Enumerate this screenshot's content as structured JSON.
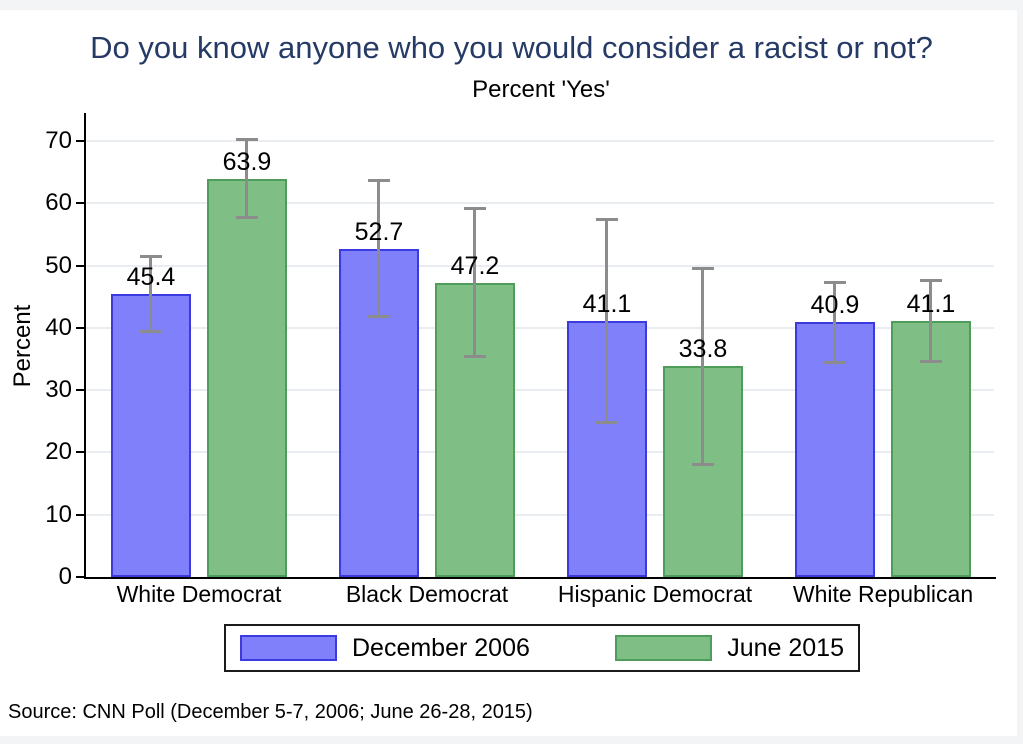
{
  "page": {
    "source": "Source: CNN Poll (December 5-7, 2006; June 26-28, 2015)",
    "colors": {
      "title_text": "#253a66",
      "bar_2006_fill": "#7f80fa",
      "bar_2006_border": "#3a3ae0",
      "bar_2015_fill": "#7fbf85",
      "bar_2015_border": "#4e9d5b",
      "error_bar": "#8c8c8c",
      "gridline": "#e9edf1",
      "axis": "#000000",
      "legend_border": "#1a1a1a"
    }
  },
  "chart_data": {
    "type": "bar",
    "title": "Do you know anyone who you would consider a racist or not?",
    "subtitle": "Percent 'Yes'",
    "ylabel": "Percent",
    "ylim": [
      0,
      70
    ],
    "yticks": [
      0,
      10,
      20,
      30,
      40,
      50,
      60,
      70
    ],
    "grid": true,
    "legend_position": "bottom",
    "categories": [
      "White Democrat",
      "Black Democrat",
      "Hispanic Democrat",
      "White Republican"
    ],
    "series": [
      {
        "name": "December 2006",
        "values": [
          45.4,
          52.7,
          41.1,
          40.9
        ],
        "error_low": [
          39.3,
          41.7,
          24.8,
          34.4
        ],
        "error_high": [
          51.6,
          63.7,
          57.4,
          47.4
        ],
        "fill": "#7f80fa",
        "border": "#3a3ae0"
      },
      {
        "name": "June 2015",
        "values": [
          63.9,
          47.2,
          33.8,
          41.1
        ],
        "error_low": [
          57.6,
          35.3,
          18.0,
          34.5
        ],
        "error_high": [
          70.3,
          59.2,
          49.6,
          47.7
        ],
        "fill": "#7fbf85",
        "border": "#4e9d5b"
      }
    ]
  }
}
